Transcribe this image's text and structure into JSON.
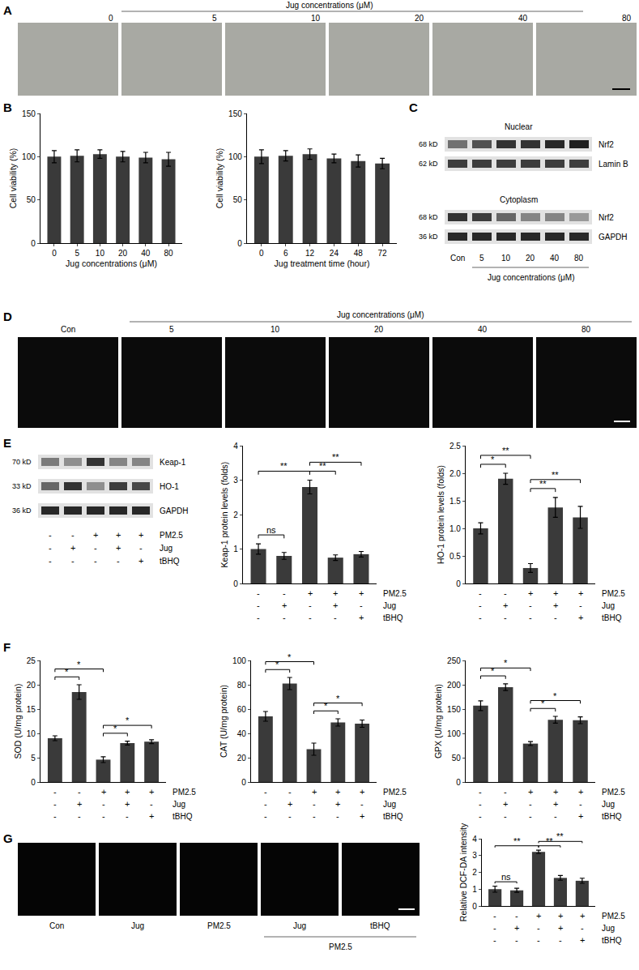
{
  "panels": {
    "A": {
      "label": "A",
      "header": "Jug concentrations (μM)",
      "images": [
        "0",
        "5",
        "10",
        "20",
        "40",
        "80"
      ]
    },
    "B": {
      "label": "B"
    },
    "C": {
      "label": "C",
      "lanes": [
        "Con",
        "5",
        "10",
        "20",
        "40",
        "80"
      ],
      "x_label": "Jug concentrations (μM)",
      "blots": [
        {
          "title": "Nuclear",
          "rows": [
            {
              "name": "Nrf2",
              "size": "68 kD",
              "band_intensity": [
                0.55,
                0.7,
                0.85,
                0.85,
                0.9,
                0.95
              ]
            },
            {
              "name": "Lamin B",
              "size": "62 kD",
              "band_intensity": [
                0.8,
                0.8,
                0.8,
                0.8,
                0.8,
                0.8
              ]
            }
          ]
        },
        {
          "title": "Cytoplasm",
          "rows": [
            {
              "name": "Nrf2",
              "size": "68 kD",
              "band_intensity": [
                0.85,
                0.8,
                0.6,
                0.45,
                0.45,
                0.35
              ]
            },
            {
              "name": "GAPDH",
              "size": "36 kD",
              "band_intensity": [
                0.9,
                0.9,
                0.9,
                0.9,
                0.9,
                0.9
              ]
            }
          ]
        }
      ]
    },
    "D": {
      "label": "D",
      "header": "Jug concentrations (μM)",
      "images": [
        "Con",
        "5",
        "10",
        "20",
        "40",
        "80"
      ]
    },
    "E": {
      "label": "E",
      "rows": [
        {
          "name": "Keap-1",
          "size": "70 kD",
          "band_intensity": [
            0.5,
            0.4,
            0.85,
            0.45,
            0.45
          ]
        },
        {
          "name": "HO-1",
          "size": "33 kD",
          "band_intensity": [
            0.6,
            0.85,
            0.4,
            0.8,
            0.75
          ]
        },
        {
          "name": "GAPDH",
          "size": "36 kD",
          "band_intensity": [
            0.9,
            0.9,
            0.9,
            0.9,
            0.9
          ]
        }
      ],
      "conditions": {
        "rows": [
          "PM2.5",
          "Jug",
          "tBHQ"
        ],
        "signs": [
          [
            "-",
            "-",
            "+",
            "+",
            "+"
          ],
          [
            "-",
            "+",
            "-",
            "+",
            "-"
          ],
          [
            "-",
            "-",
            "-",
            "-",
            "+"
          ]
        ]
      }
    },
    "F": {
      "label": "F"
    },
    "G": {
      "label": "G",
      "images": [
        "Con",
        "Jug",
        "PM2.5",
        "Jug",
        "tBHQ"
      ],
      "group": {
        "label": "PM2.5",
        "from": 3,
        "to": 4
      }
    }
  },
  "chart_data": [
    {
      "type": "bar",
      "x_label": "Jug concentrations (μM)",
      "y_label": "Cell viability (%)",
      "categories": [
        "0",
        "5",
        "10",
        "20",
        "40",
        "80"
      ],
      "values": [
        100,
        101,
        103,
        100,
        99,
        97
      ],
      "errors": [
        7,
        7,
        5,
        6,
        6,
        8
      ],
      "color": "#3a3a3a",
      "ylim": [
        0,
        150
      ],
      "yticks": [
        0,
        50,
        100,
        150
      ],
      "grid": false,
      "significance": []
    },
    {
      "type": "bar",
      "x_label": "Jug treatment time (hour)",
      "y_label": "Cell viability (%)",
      "categories": [
        "0",
        "6",
        "12",
        "24",
        "48",
        "72"
      ],
      "values": [
        100,
        101,
        103,
        98,
        95,
        92
      ],
      "errors": [
        8,
        6,
        6,
        5,
        7,
        6
      ],
      "color": "#3a3a3a",
      "ylim": [
        0,
        150
      ],
      "yticks": [
        0,
        50,
        100,
        150
      ],
      "grid": false,
      "significance": []
    },
    {
      "type": "bar",
      "y_label": "Keap-1 protein levels (folds)",
      "categories": [
        null,
        null,
        null,
        null,
        null
      ],
      "values": [
        1.0,
        0.8,
        2.8,
        0.75,
        0.85
      ],
      "errors": [
        0.15,
        0.1,
        0.2,
        0.08,
        0.08
      ],
      "color": "#3a3a3a",
      "ylim": [
        0,
        4
      ],
      "yticks": [
        0,
        1,
        2,
        3,
        4
      ],
      "grid": false,
      "tick_labels": "y",
      "significance": [
        {
          "from": 0,
          "to": 1,
          "label": "ns"
        },
        {
          "from": 0,
          "to": 2,
          "label": "**"
        },
        {
          "from": 2,
          "to": 3,
          "label": "**"
        },
        {
          "from": 2,
          "to": 4,
          "label": "**"
        }
      ],
      "conditions": {
        "rows": [
          "PM2.5",
          "Jug",
          "tBHQ"
        ],
        "signs": [
          [
            "-",
            "-",
            "+",
            "+",
            "+"
          ],
          [
            "-",
            "+",
            "-",
            "+",
            "-"
          ],
          [
            "-",
            "-",
            "-",
            "-",
            "+"
          ]
        ]
      }
    },
    {
      "type": "bar",
      "y_label": "HO-1 protein levels (folds)",
      "categories": [
        null,
        null,
        null,
        null,
        null
      ],
      "values": [
        1.0,
        1.9,
        0.28,
        1.38,
        1.2
      ],
      "errors": [
        0.1,
        0.1,
        0.08,
        0.18,
        0.2
      ],
      "color": "#3a3a3a",
      "ylim": [
        0,
        2.5
      ],
      "yticks": [
        0,
        0.5,
        {
          "value": 1,
          "label": "1.0"
        },
        1.5,
        {
          "value": 2,
          "label": "2.0"
        },
        2.5
      ],
      "grid": false,
      "tick_labels": "y",
      "significance": [
        {
          "from": 0,
          "to": 1,
          "label": "*"
        },
        {
          "from": 0,
          "to": 2,
          "label": "**"
        },
        {
          "from": 2,
          "to": 3,
          "label": "**"
        },
        {
          "from": 2,
          "to": 4,
          "label": "**"
        }
      ],
      "conditions": {
        "rows": [
          "PM2.5",
          "Jug",
          "tBHQ"
        ],
        "signs": [
          [
            "-",
            "-",
            "+",
            "+",
            "+"
          ],
          [
            "-",
            "+",
            "-",
            "+",
            "-"
          ],
          [
            "-",
            "-",
            "-",
            "-",
            "+"
          ]
        ]
      }
    },
    {
      "type": "bar",
      "y_label": "SOD (U/mg protein)",
      "categories": [
        null,
        null,
        null,
        null,
        null
      ],
      "values": [
        9,
        18.5,
        4.6,
        8.0,
        8.3
      ],
      "errors": [
        0.5,
        1.5,
        0.6,
        0.4,
        0.4
      ],
      "color": "#3a3a3a",
      "ylim": [
        0,
        25
      ],
      "yticks": [
        0,
        5,
        10,
        15,
        20,
        25
      ],
      "grid": false,
      "tick_labels": "y",
      "significance": [
        {
          "from": 0,
          "to": 1,
          "label": "*"
        },
        {
          "from": 0,
          "to": 2,
          "label": "*"
        },
        {
          "from": 2,
          "to": 3,
          "label": "*"
        },
        {
          "from": 2,
          "to": 4,
          "label": "*"
        }
      ],
      "conditions": {
        "rows": [
          "PM2.5",
          "Jug",
          "tBHQ"
        ],
        "signs": [
          [
            "-",
            "-",
            "+",
            "+",
            "+"
          ],
          [
            "-",
            "+",
            "-",
            "+",
            "-"
          ],
          [
            "-",
            "-",
            "-",
            "-",
            "+"
          ]
        ]
      }
    },
    {
      "type": "bar",
      "y_label": "CAT (U/mg protein)",
      "categories": [
        null,
        null,
        null,
        null,
        null
      ],
      "values": [
        54,
        81,
        27,
        49,
        48
      ],
      "errors": [
        4,
        5,
        5,
        3,
        3
      ],
      "color": "#3a3a3a",
      "ylim": [
        0,
        100
      ],
      "yticks": [
        0,
        20,
        40,
        60,
        80,
        100
      ],
      "grid": false,
      "tick_labels": "y",
      "significance": [
        {
          "from": 0,
          "to": 1,
          "label": "*"
        },
        {
          "from": 0,
          "to": 2,
          "label": "*"
        },
        {
          "from": 2,
          "to": 3,
          "label": "*"
        },
        {
          "from": 2,
          "to": 4,
          "label": "*"
        }
      ],
      "conditions": {
        "rows": [
          "PM2.5",
          "Jug",
          "tBHQ"
        ],
        "signs": [
          [
            "-",
            "-",
            "+",
            "+",
            "+"
          ],
          [
            "-",
            "+",
            "-",
            "+",
            "-"
          ],
          [
            "-",
            "-",
            "-",
            "-",
            "+"
          ]
        ]
      }
    },
    {
      "type": "bar",
      "y_label": "GPX (U/mg protein)",
      "categories": [
        null,
        null,
        null,
        null,
        null
      ],
      "values": [
        157,
        195,
        79,
        128,
        127
      ],
      "errors": [
        10,
        7,
        4,
        7,
        7
      ],
      "color": "#3a3a3a",
      "ylim": [
        0,
        250
      ],
      "yticks": [
        0,
        50,
        100,
        150,
        200,
        250
      ],
      "grid": false,
      "tick_labels": "y",
      "significance": [
        {
          "from": 0,
          "to": 1,
          "label": "*"
        },
        {
          "from": 0,
          "to": 2,
          "label": "*"
        },
        {
          "from": 2,
          "to": 3,
          "label": "*"
        },
        {
          "from": 2,
          "to": 4,
          "label": "*"
        }
      ],
      "conditions": {
        "rows": [
          "PM2.5",
          "Jug",
          "tBHQ"
        ],
        "signs": [
          [
            "-",
            "-",
            "+",
            "+",
            "+"
          ],
          [
            "-",
            "+",
            "-",
            "+",
            "-"
          ],
          [
            "-",
            "-",
            "-",
            "-",
            "+"
          ]
        ]
      }
    },
    {
      "type": "bar",
      "y_label": "Relative DCF-DA intensity",
      "categories": [
        null,
        null,
        null,
        null,
        null
      ],
      "values": [
        1.0,
        0.93,
        3.22,
        1.67,
        1.5
      ],
      "errors": [
        0.18,
        0.12,
        0.1,
        0.14,
        0.15
      ],
      "color": "#3a3a3a",
      "ylim": [
        0,
        4
      ],
      "yticks": [
        0,
        1,
        2,
        3,
        4
      ],
      "grid": false,
      "tick_labels": "y",
      "significance": [
        {
          "from": 0,
          "to": 1,
          "label": "ns"
        },
        {
          "from": 0,
          "to": 2,
          "label": "**"
        },
        {
          "from": 2,
          "to": 3,
          "label": "**"
        },
        {
          "from": 2,
          "to": 4,
          "label": "**"
        }
      ],
      "conditions": {
        "rows": [
          "PM2.5",
          "Jug",
          "tBHQ"
        ],
        "signs": [
          [
            "-",
            "-",
            "+",
            "+",
            "+"
          ],
          [
            "-",
            "+",
            "-",
            "+",
            "-"
          ],
          [
            "-",
            "-",
            "-",
            "-",
            "+"
          ]
        ]
      }
    }
  ]
}
